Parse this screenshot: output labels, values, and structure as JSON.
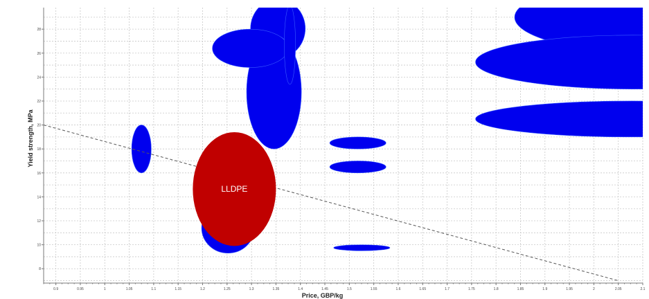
{
  "chart_data": {
    "type": "scatter",
    "xlabel": "Price, GBP/kg",
    "ylabel": "Yield strength, MPa",
    "xlim": [
      0.875,
      2.1
    ],
    "ylim": [
      6.8,
      29.8
    ],
    "x_ticks": [
      0.9,
      0.95,
      1,
      1.05,
      1.1,
      1.15,
      1.2,
      1.25,
      1.3,
      1.35,
      1.4,
      1.45,
      1.5,
      1.55,
      1.6,
      1.65,
      1.7,
      1.75,
      1.8,
      1.85,
      1.9,
      1.95,
      2,
      2.05,
      2.1
    ],
    "x_tick_labels": [
      "0.9",
      "0.95",
      "1",
      "1.05",
      "1.1",
      "1.15",
      "1.2",
      "1.25",
      "1.3",
      "1.35",
      "1.4",
      "1.45",
      "1.5",
      "1.55",
      "1.6",
      "1.65",
      "1.7",
      "1.75",
      "1.8",
      "1.85",
      "1.9",
      "1.95",
      "2",
      "2.05",
      "2.1"
    ],
    "y_ticks": [
      8,
      10,
      12,
      14,
      16,
      18,
      20,
      22,
      24,
      26,
      28
    ],
    "y_tick_labels": [
      "8",
      "10",
      "12",
      "14",
      "16",
      "18",
      "20",
      "22",
      "24",
      "26",
      "28"
    ],
    "grid": true,
    "selection_line": {
      "from": [
        0.875,
        20.0
      ],
      "to": [
        2.05,
        7.0
      ]
    },
    "colors": {
      "material": "#0000ee",
      "highlight": "#c00000"
    },
    "bubbles": [
      {
        "x_min": 1.055,
        "x_max": 1.095,
        "y_min": 16.0,
        "y_max": 20.0
      },
      {
        "x_min": 1.198,
        "x_max": 1.306,
        "y_min": 9.3,
        "y_max": 13.5
      },
      {
        "x_min": 1.298,
        "x_max": 1.41,
        "y_min": 25.6,
        "y_max": 30.5
      },
      {
        "x_min": 1.29,
        "x_max": 1.402,
        "y_min": 18.0,
        "y_max": 27.5
      },
      {
        "x_min": 1.22,
        "x_max": 1.375,
        "y_min": 24.8,
        "y_max": 28.0
      },
      {
        "x_min": 1.367,
        "x_max": 1.39,
        "y_min": 23.4,
        "y_max": 30.0
      },
      {
        "x_min": 1.46,
        "x_max": 1.575,
        "y_min": 18.0,
        "y_max": 19.0
      },
      {
        "x_min": 1.46,
        "x_max": 1.575,
        "y_min": 16.0,
        "y_max": 17.0
      },
      {
        "x_min": 1.468,
        "x_max": 1.583,
        "y_min": 9.5,
        "y_max": 10.0
      },
      {
        "x_min": 1.838,
        "x_max": 2.4,
        "y_min": 26.0,
        "y_max": 32.0
      },
      {
        "x_min": 1.758,
        "x_max": 2.4,
        "y_min": 23.0,
        "y_max": 27.5
      },
      {
        "x_min": 1.758,
        "x_max": 2.4,
        "y_min": 19.0,
        "y_max": 22.0
      }
    ],
    "highlight": {
      "label": "LLDPE",
      "x_min": 1.18,
      "x_max": 1.35,
      "y_min": 9.9,
      "y_max": 19.4
    }
  }
}
